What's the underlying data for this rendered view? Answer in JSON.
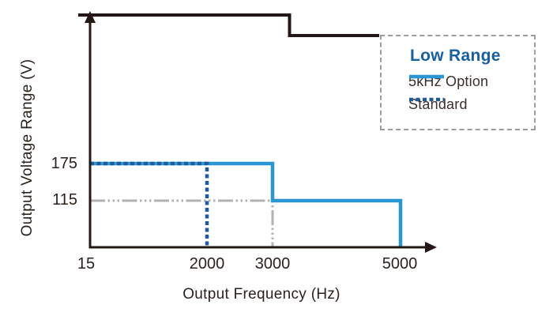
{
  "colors": {
    "dark": "#231815",
    "text_dark": "#2b211d",
    "blue_light": "#2997d4",
    "blue_dark": "#1d5b9d",
    "legend_title_blue": "#185fa4",
    "gray_guide": "#b2b2b3",
    "legend_border_gray": "#9d9d9e"
  },
  "chart_data": {
    "type": "line",
    "title": "",
    "xlabel": "Output Frequency (Hz)",
    "ylabel": "Output Voltage Range (V)",
    "x_ticks": [
      "15",
      "2000",
      "3000",
      "5000"
    ],
    "y_ticks": [
      "175",
      "115"
    ],
    "x_range": [
      15,
      5000
    ],
    "y_range": [
      0,
      200
    ],
    "grid": false,
    "legend_position": "top-right",
    "series": [
      {
        "name": "115V guide line",
        "role": "guide",
        "style": "dashdot",
        "color": "#b2b2b3",
        "points": [
          [
            15,
            115
          ],
          [
            3000,
            115
          ],
          [
            3000,
            0
          ]
        ]
      },
      {
        "name": "5kHz Option",
        "role": "series",
        "style": "solid",
        "color": "#2997d4",
        "points": [
          [
            15,
            175
          ],
          [
            3000,
            175
          ],
          [
            3000,
            115
          ],
          [
            5000,
            115
          ],
          [
            5000,
            0
          ]
        ]
      },
      {
        "name": "Standard",
        "role": "series",
        "style": "dashed",
        "color": "#1d5b9d",
        "points": [
          [
            15,
            175
          ],
          [
            2000,
            175
          ],
          [
            2000,
            0
          ]
        ]
      }
    ],
    "legend": {
      "title": "Low Range",
      "items": [
        {
          "label": "5kHz Option",
          "style": "solid",
          "color": "#2997d4"
        },
        {
          "label": "Standard",
          "style": "dashed",
          "color": "#1d5b9d"
        }
      ]
    }
  }
}
